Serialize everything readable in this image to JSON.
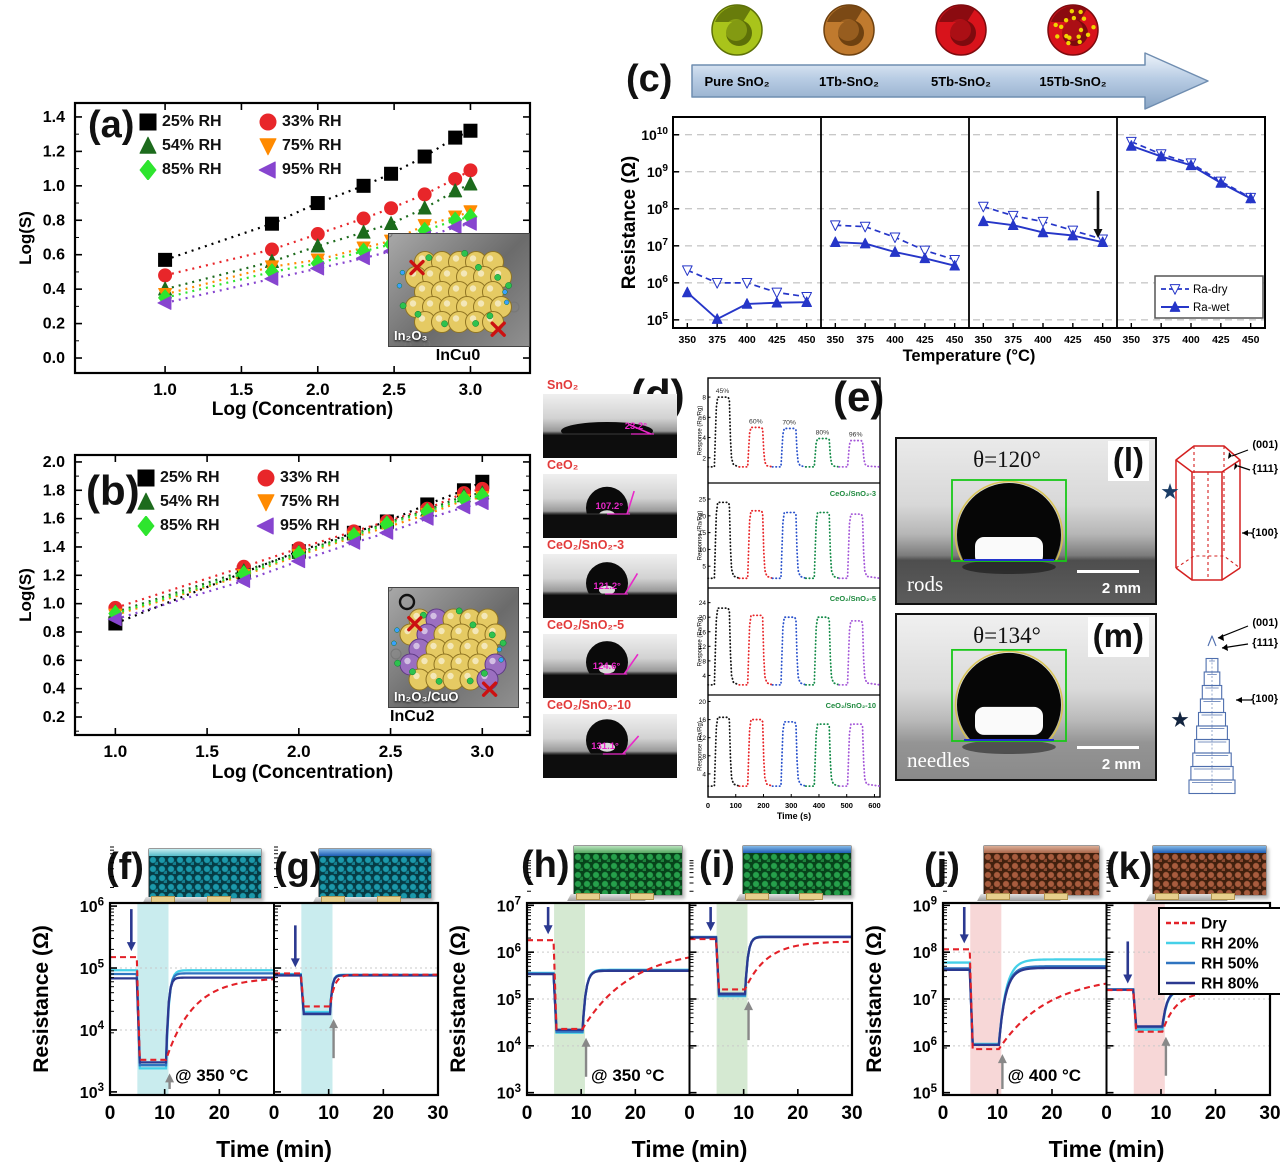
{
  "figure": {
    "background": "#ffffff"
  },
  "panels": {
    "a": {
      "label": "(a)",
      "xlabel": "Log (Concentration)",
      "ylabel": "Log(S)",
      "inset_material": "In₂O₃",
      "inset_sample": "InCu0"
    },
    "b": {
      "label": "(b)",
      "xlabel": "Log (Concentration)",
      "ylabel": "Log(S)",
      "inset_material": "In₂O₃/CuO",
      "inset_sample": "InCu2"
    },
    "c": {
      "label": "(c)",
      "xlabel": "Temperature (°C)",
      "ylabel": "Resistance (Ω)",
      "samples": [
        {
          "name": "Pure SnO₂",
          "color": "#a9c41b",
          "inner": "#5d7008"
        },
        {
          "name": "1Tb-SnO₂",
          "color": "#c07a2e",
          "inner": "#6e4110"
        },
        {
          "name": "5Tb-SnO₂",
          "color": "#d8131b",
          "inner": "#7e0a0e"
        },
        {
          "name": "15Tb-SnO₂",
          "color": "#d8131b",
          "inner": "#7e0a0e",
          "speckle": "#f0d400"
        }
      ],
      "legend": [
        "Ra-dry",
        "Ra-wet"
      ]
    },
    "d": {
      "label": "(d)",
      "items": [
        {
          "name": "SnO₂",
          "angle": "23.2°",
          "deg": 23.2
        },
        {
          "name": "CeO₂",
          "angle": "107.2°",
          "deg": 107.2
        },
        {
          "name": "CeO₂/SnO₂-3",
          "angle": "121.2°",
          "deg": 121.2
        },
        {
          "name": "CeO₂/SnO₂-5",
          "angle": "124.6°",
          "deg": 124.6
        },
        {
          "name": "CeO₂/SnO₂-10",
          "angle": "131.1°",
          "deg": 131.1
        }
      ]
    },
    "e": {
      "label": "(e)",
      "xlabel": "Time (s)",
      "ylabel": "Response (Ra/Rg)"
    },
    "l": {
      "label": "(l)",
      "theta": "θ=120°",
      "name": "rods",
      "scalebar": "2 mm",
      "facets": [
        "(001)",
        "{111}",
        "{100}"
      ]
    },
    "m": {
      "label": "(m)",
      "theta": "θ=134°",
      "name": "needles",
      "scalebar": "2 mm",
      "facets": [
        "(001)",
        "{111}",
        "{100}"
      ]
    },
    "f": {
      "label": "(f)",
      "anno": "@ 350 °C"
    },
    "g": {
      "label": "(g)"
    },
    "h": {
      "label": "(h)",
      "anno": "@ 350 °C"
    },
    "i": {
      "label": "(i)"
    },
    "j": {
      "label": "(j)",
      "anno": "@ 400 °C"
    },
    "k": {
      "label": "(k)"
    },
    "bottom": {
      "xlabel": "Time (min)",
      "ylabel": "Resistance (Ω)",
      "legend": [
        "Dry",
        "RH 20%",
        "RH 50%",
        "RH 80%"
      ],
      "legend_colors": [
        "#e32128",
        "#45d0e8",
        "#2f74c0",
        "#2b3990"
      ],
      "legend_dash": [
        true,
        false,
        false,
        false
      ]
    }
  },
  "chart_data": [
    {
      "id": "a",
      "type": "scatter",
      "title": "",
      "xlabel": "Log (Concentration)",
      "ylabel": "Log(S)",
      "xticks": [
        "1.0",
        "1.5",
        "2.0",
        "2.5",
        "3.0"
      ],
      "yticks": [
        "0.0",
        "0.2",
        "0.4",
        "0.6",
        "0.8",
        "1.0",
        "1.2",
        "1.4"
      ],
      "x": [
        1.0,
        1.7,
        2.0,
        2.3,
        2.48,
        2.7,
        2.9,
        3.0
      ],
      "series": [
        {
          "name": "25% RH",
          "color": "#000000",
          "marker": "square",
          "values": [
            0.57,
            0.78,
            0.9,
            1.0,
            1.07,
            1.17,
            1.28,
            1.32
          ]
        },
        {
          "name": "33% RH",
          "color": "#e8262a",
          "marker": "circle",
          "values": [
            0.48,
            0.63,
            0.72,
            0.81,
            0.87,
            0.95,
            1.04,
            1.09
          ]
        },
        {
          "name": "54% RH",
          "color": "#1d6b1d",
          "marker": "triangle-up",
          "values": [
            0.4,
            0.56,
            0.65,
            0.73,
            0.78,
            0.87,
            0.97,
            1.01
          ]
        },
        {
          "name": "75% RH",
          "color": "#ff8a00",
          "marker": "triangle-down",
          "values": [
            0.37,
            0.53,
            0.57,
            0.64,
            0.68,
            0.77,
            0.82,
            0.85
          ]
        },
        {
          "name": "85% RH",
          "color": "#2ee52e",
          "marker": "diamond",
          "values": [
            0.35,
            0.5,
            0.55,
            0.62,
            0.66,
            0.74,
            0.8,
            0.82
          ]
        },
        {
          "name": "95% RH",
          "color": "#8745cf",
          "marker": "triangle-left",
          "values": [
            0.32,
            0.46,
            0.52,
            0.58,
            0.62,
            0.7,
            0.76,
            0.78
          ]
        }
      ]
    },
    {
      "id": "b",
      "type": "scatter",
      "title": "",
      "xlabel": "Log (Concentration)",
      "ylabel": "Log(S)",
      "xticks": [
        "1.0",
        "1.5",
        "2.0",
        "2.5",
        "3.0"
      ],
      "yticks": [
        "0.2",
        "0.4",
        "0.6",
        "0.8",
        "1.0",
        "1.2",
        "1.4",
        "1.6",
        "1.8",
        "2.0"
      ],
      "x": [
        1.0,
        1.7,
        2.0,
        2.3,
        2.48,
        2.7,
        2.9,
        3.0
      ],
      "series": [
        {
          "name": "25% RH",
          "color": "#000000",
          "marker": "square",
          "values": [
            0.86,
            1.22,
            1.37,
            1.5,
            1.58,
            1.7,
            1.8,
            1.86
          ]
        },
        {
          "name": "33% RH",
          "color": "#e8262a",
          "marker": "circle",
          "values": [
            0.97,
            1.26,
            1.39,
            1.51,
            1.58,
            1.67,
            1.78,
            1.81
          ]
        },
        {
          "name": "54% RH",
          "color": "#1d6b1d",
          "marker": "triangle-up",
          "values": [
            0.94,
            1.23,
            1.36,
            1.49,
            1.57,
            1.66,
            1.76,
            1.78
          ]
        },
        {
          "name": "75% RH",
          "color": "#ff8a00",
          "marker": "triangle-down",
          "values": [
            0.92,
            1.2,
            1.34,
            1.47,
            1.54,
            1.63,
            1.73,
            1.75
          ]
        },
        {
          "name": "85% RH",
          "color": "#2ee52e",
          "marker": "diamond",
          "values": [
            0.93,
            1.21,
            1.35,
            1.48,
            1.56,
            1.65,
            1.74,
            1.76
          ]
        },
        {
          "name": "95% RH",
          "color": "#8745cf",
          "marker": "triangle-left",
          "values": [
            0.89,
            1.16,
            1.3,
            1.43,
            1.5,
            1.6,
            1.68,
            1.71
          ]
        }
      ]
    },
    {
      "id": "c",
      "type": "panel-log-line",
      "xlabel": "Temperature (°C)",
      "ylabel": "Resistance (Ω)",
      "x": [
        350,
        375,
        400,
        425,
        450
      ],
      "xticks": [
        "350",
        "375",
        "400",
        "425",
        "450"
      ],
      "ylog": [
        4.78,
        10.48
      ],
      "ydecades": [
        5,
        6,
        7,
        8,
        9,
        10
      ],
      "color": "#2636c8",
      "legend": [
        "Ra-dry",
        "Ra-wet"
      ],
      "panels": [
        {
          "name": "Pure SnO₂",
          "dry": [
            2200000.0,
            1000000.0,
            1000000.0,
            550000.0,
            420000.0
          ],
          "wet": [
            550000.0,
            105000.0,
            270000.0,
            290000.0,
            300000.0
          ]
        },
        {
          "name": "1Tb-SnO₂",
          "dry": [
            36000000.0,
            33000000.0,
            17000000.0,
            7500000.0,
            4200000.0
          ],
          "wet": [
            12500000.0,
            11500000.0,
            6800000.0,
            4600000.0,
            2900000.0
          ]
        },
        {
          "name": "5Tb-SnO₂",
          "dry": [
            115000000.0,
            65000000.0,
            45000000.0,
            26000000.0,
            15000000.0
          ],
          "wet": [
            46000000.0,
            36000000.0,
            23000000.0,
            19000000.0,
            12500000.0
          ]
        },
        {
          "name": "15Tb-SnO₂",
          "dry": [
            6500000000.0,
            3000000000.0,
            1700000000.0,
            550000000.0,
            200000000.0
          ],
          "wet": [
            5000000000.0,
            2600000000.0,
            1500000000.0,
            500000000.0,
            190000000.0
          ]
        }
      ]
    },
    {
      "id": "e",
      "type": "pulse",
      "xlabel": "Time (s)",
      "ylabel": "Response (Ra/Rg)",
      "xlim": [
        0,
        620
      ],
      "xticks": [
        0,
        100,
        200,
        300,
        400,
        500,
        600
      ],
      "windows": [
        [
          25,
          80
        ],
        [
          145,
          200
        ],
        [
          265,
          320
        ],
        [
          385,
          440
        ],
        [
          505,
          560
        ]
      ],
      "colors": [
        "#141414",
        "#e8262a",
        "#2a52cc",
        "#128a47",
        "#a558d8"
      ],
      "rows": [
        {
          "label": "",
          "yticks": [
            2,
            4,
            6,
            8
          ],
          "ymax": 8.8,
          "base": 1.1,
          "peaks": [
            8.0,
            5.0,
            4.9,
            3.9,
            3.7
          ],
          "peak_labels": [
            "45%",
            "60%",
            "70%",
            "80%",
            "96%"
          ]
        },
        {
          "label": "CeO₂/SnO₂-3",
          "yticks": [
            5,
            10,
            15,
            20,
            25
          ],
          "ymax": 26.5,
          "base": 1.4,
          "peaks": [
            24,
            21.5,
            21,
            21,
            20.5
          ]
        },
        {
          "label": "CeO₂/SnO₂-5",
          "yticks": [
            4,
            8,
            12,
            16,
            20,
            24
          ],
          "ymax": 25,
          "base": 1.4,
          "peaks": [
            22.5,
            20.5,
            20,
            20,
            19
          ]
        },
        {
          "label": "CeO₂/SnO₂-10",
          "yticks": [
            4,
            8,
            12,
            16,
            20
          ],
          "ymax": 19,
          "base": 1.3,
          "peaks": [
            16.5,
            16,
            15.5,
            15,
            15
          ]
        }
      ]
    },
    {
      "id": "f",
      "type": "response-log",
      "ylog": [
        2.95,
        6.05
      ],
      "ydecades": [
        3,
        4,
        5,
        6
      ],
      "band": [
        5,
        10.7
      ],
      "band_color": "#c9ecee",
      "anno": "@ 350 °C",
      "xticks_left": [
        0,
        10,
        20
      ],
      "xticks_right": [
        0,
        10,
        20,
        30
      ],
      "series": [
        {
          "name": "Dry",
          "color": "#e32128",
          "dash": true,
          "base": 150000.0,
          "dip": 3300.0,
          "tau": 5,
          "final": 70000.0
        },
        {
          "name": "RH 20%",
          "color": "#45d0e8",
          "dash": false,
          "base": 92000.0,
          "dip": 2400.0,
          "tau": 0.5,
          "final": 92000.0
        },
        {
          "name": "RH 50%",
          "color": "#2f74c0",
          "dash": false,
          "base": 80000.0,
          "dip": 2700.0,
          "tau": 0.45,
          "final": 82000.0
        },
        {
          "name": "RH 80%",
          "color": "#2b3990",
          "dash": false,
          "base": 68000.0,
          "dip": 3000.0,
          "tau": 0.4,
          "final": 70000.0
        }
      ]
    },
    {
      "id": "g",
      "type": "response-log",
      "ylog": [
        2.95,
        6.05
      ],
      "ydecades": [
        3,
        4,
        5,
        6
      ],
      "band": [
        5,
        10.7
      ],
      "band_color": "#c9ecee",
      "series": [
        {
          "name": "Dry",
          "color": "#e32128",
          "dash": true,
          "base": 82000.0,
          "dip": 24000.0,
          "tau": 0.8,
          "final": 78000.0
        },
        {
          "name": "RH 20%",
          "color": "#45d0e8",
          "dash": false,
          "base": 80000.0,
          "dip": 19500.0,
          "tau": 0.35,
          "final": 78000.0
        },
        {
          "name": "RH 50%",
          "color": "#2f74c0",
          "dash": false,
          "base": 78000.0,
          "dip": 18500.0,
          "tau": 0.35,
          "final": 77000.0
        },
        {
          "name": "RH 80%",
          "color": "#2b3990",
          "dash": false,
          "base": 76000.0,
          "dip": 18000.0,
          "tau": 0.35,
          "final": 76000.0
        }
      ]
    },
    {
      "id": "h",
      "type": "response-log",
      "ylog": [
        2.95,
        7.05
      ],
      "ydecades": [
        3,
        4,
        5,
        6,
        7
      ],
      "band": [
        5,
        10.7
      ],
      "band_color": "#d5e9d2",
      "anno": "@ 350 °C",
      "series": [
        {
          "name": "Dry",
          "color": "#e32128",
          "dash": true,
          "base": 1800000.0,
          "dip": 23000.0,
          "tau": 9,
          "final": 1200000.0
        },
        {
          "name": "RH 20%",
          "color": "#45d0e8",
          "dash": false,
          "base": 360000.0,
          "dip": 19000.0,
          "tau": 0.6,
          "final": 420000.0
        },
        {
          "name": "RH 50%",
          "color": "#2f74c0",
          "dash": false,
          "base": 350000.0,
          "dip": 20000.0,
          "tau": 0.6,
          "final": 410000.0
        },
        {
          "name": "RH 80%",
          "color": "#2b3990",
          "dash": false,
          "base": 340000.0,
          "dip": 22000.0,
          "tau": 0.6,
          "final": 400000.0
        }
      ]
    },
    {
      "id": "i",
      "type": "response-log",
      "ylog": [
        2.95,
        7.05
      ],
      "ydecades": [
        3,
        4,
        5,
        6,
        7
      ],
      "band": [
        5,
        10.7
      ],
      "band_color": "#d5e9d2",
      "series": [
        {
          "name": "Dry",
          "color": "#e32128",
          "dash": true,
          "base": 1900000.0,
          "dip": 160000.0,
          "tau": 4,
          "final": 1700000.0
        },
        {
          "name": "RH 20%",
          "color": "#45d0e8",
          "dash": false,
          "base": 2100000.0,
          "dip": 115000.0,
          "tau": 0.5,
          "final": 2150000.0
        },
        {
          "name": "RH 50%",
          "color": "#2f74c0",
          "dash": false,
          "base": 2100000.0,
          "dip": 120000.0,
          "tau": 0.5,
          "final": 2150000.0
        },
        {
          "name": "RH 80%",
          "color": "#2b3990",
          "dash": false,
          "base": 2050000.0,
          "dip": 130000.0,
          "tau": 0.5,
          "final": 2100000.0
        }
      ]
    },
    {
      "id": "j",
      "type": "response-log",
      "ylog": [
        4.95,
        9.05
      ],
      "ydecades": [
        5,
        6,
        7,
        8,
        9
      ],
      "band": [
        5,
        10.7
      ],
      "band_color": "#f7d7d7",
      "anno": "@ 400 °C",
      "series": [
        {
          "name": "Dry",
          "color": "#e32128",
          "dash": true,
          "base": 115000000.0,
          "dip": 850000.0,
          "tau": 9,
          "final": 32000000.0
        },
        {
          "name": "RH 20%",
          "color": "#45d0e8",
          "dash": false,
          "base": 60000000.0,
          "dip": 1100000.0,
          "tau": 1.3,
          "final": 70000000.0
        },
        {
          "name": "RH 50%",
          "color": "#2f74c0",
          "dash": false,
          "base": 45000000.0,
          "dip": 1050000.0,
          "tau": 1.2,
          "final": 50000000.0
        },
        {
          "name": "RH 80%",
          "color": "#2b3990",
          "dash": false,
          "base": 42000000.0,
          "dip": 1050000.0,
          "tau": 1.2,
          "final": 46000000.0
        }
      ]
    },
    {
      "id": "k",
      "type": "response-log",
      "ylog": [
        4.95,
        9.05
      ],
      "ydecades": [
        5,
        6,
        7,
        8,
        9
      ],
      "band": [
        5,
        10.7
      ],
      "band_color": "#f7d7d7",
      "series": [
        {
          "name": "Dry",
          "color": "#e32128",
          "dash": true,
          "base": 15500000.0,
          "dip": 2000000.0,
          "tau": 2.5,
          "final": 14500000.0
        },
        {
          "name": "RH 20%",
          "color": "#45d0e8",
          "dash": false,
          "base": 16000000.0,
          "dip": 2200000.0,
          "tau": 0.8,
          "final": 15000000.0
        },
        {
          "name": "RH 50%",
          "color": "#2f74c0",
          "dash": false,
          "base": 16000000.0,
          "dip": 2500000.0,
          "tau": 0.8,
          "final": 15500000.0
        },
        {
          "name": "RH 80%",
          "color": "#2b3990",
          "dash": false,
          "base": 15800000.0,
          "dip": 2600000.0,
          "tau": 0.8,
          "final": 15200000.0
        }
      ]
    }
  ]
}
